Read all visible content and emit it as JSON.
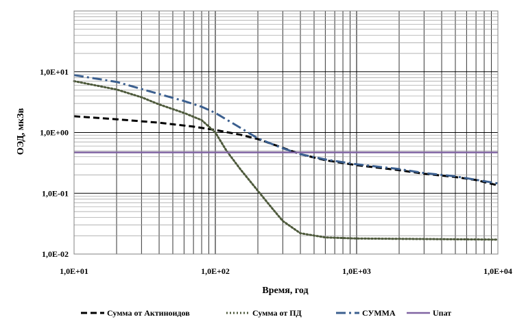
{
  "chart_data": {
    "type": "line",
    "xlabel": "Время, год",
    "ylabel": "ОЭД, мкЗв",
    "x_scale": "log",
    "y_scale": "log",
    "xlim": [
      10,
      10000
    ],
    "ylim": [
      0.01,
      100
    ],
    "x_ticks": [
      "1,0E+01",
      "1,0E+02",
      "1,0E+03",
      "1,0E+04"
    ],
    "y_ticks": [
      "1,0E-02",
      "1,0E-01",
      "1,0E+00",
      "1,0E+01"
    ],
    "grid": true,
    "legend_position": "bottom",
    "series": [
      {
        "name": "Сумма от Актиноидов",
        "color": "#000000",
        "style": "dashed",
        "points": [
          [
            10,
            1.85
          ],
          [
            20,
            1.65
          ],
          [
            40,
            1.45
          ],
          [
            70,
            1.25
          ],
          [
            100,
            1.1
          ],
          [
            150,
            0.92
          ],
          [
            200,
            0.78
          ],
          [
            300,
            0.56
          ],
          [
            400,
            0.44
          ],
          [
            600,
            0.35
          ],
          [
            1000,
            0.29
          ],
          [
            2000,
            0.24
          ],
          [
            3000,
            0.21
          ],
          [
            5000,
            0.185
          ],
          [
            7000,
            0.165
          ],
          [
            10000,
            0.135
          ]
        ]
      },
      {
        "name": "Сумма от ПД",
        "color": "#4e5a3c",
        "style": "dotted",
        "points": [
          [
            10,
            7
          ],
          [
            20,
            5.1
          ],
          [
            30,
            3.8
          ],
          [
            40,
            2.9
          ],
          [
            60,
            2.1
          ],
          [
            80,
            1.6
          ],
          [
            100,
            1.0
          ],
          [
            120,
            0.5
          ],
          [
            150,
            0.25
          ],
          [
            200,
            0.11
          ],
          [
            250,
            0.058
          ],
          [
            300,
            0.035
          ],
          [
            400,
            0.022
          ],
          [
            600,
            0.0188
          ],
          [
            1000,
            0.018
          ],
          [
            10000,
            0.0173
          ]
        ]
      },
      {
        "name": "СУММА",
        "color": "#3b5f8f",
        "style": "dashdot",
        "points": [
          [
            10,
            8.8
          ],
          [
            20,
            6.8
          ],
          [
            40,
            4.3
          ],
          [
            60,
            3.3
          ],
          [
            80,
            2.65
          ],
          [
            100,
            2.1
          ],
          [
            150,
            1.2
          ],
          [
            200,
            0.8
          ],
          [
            300,
            0.55
          ],
          [
            400,
            0.44
          ],
          [
            600,
            0.36
          ],
          [
            1000,
            0.3
          ],
          [
            2000,
            0.25
          ],
          [
            3000,
            0.215
          ],
          [
            5000,
            0.19
          ],
          [
            10000,
            0.145
          ]
        ]
      },
      {
        "name": "Uпат",
        "color": "#8064a2",
        "style": "solid",
        "points": [
          [
            10,
            0.47
          ],
          [
            10000,
            0.47
          ]
        ]
      }
    ]
  }
}
